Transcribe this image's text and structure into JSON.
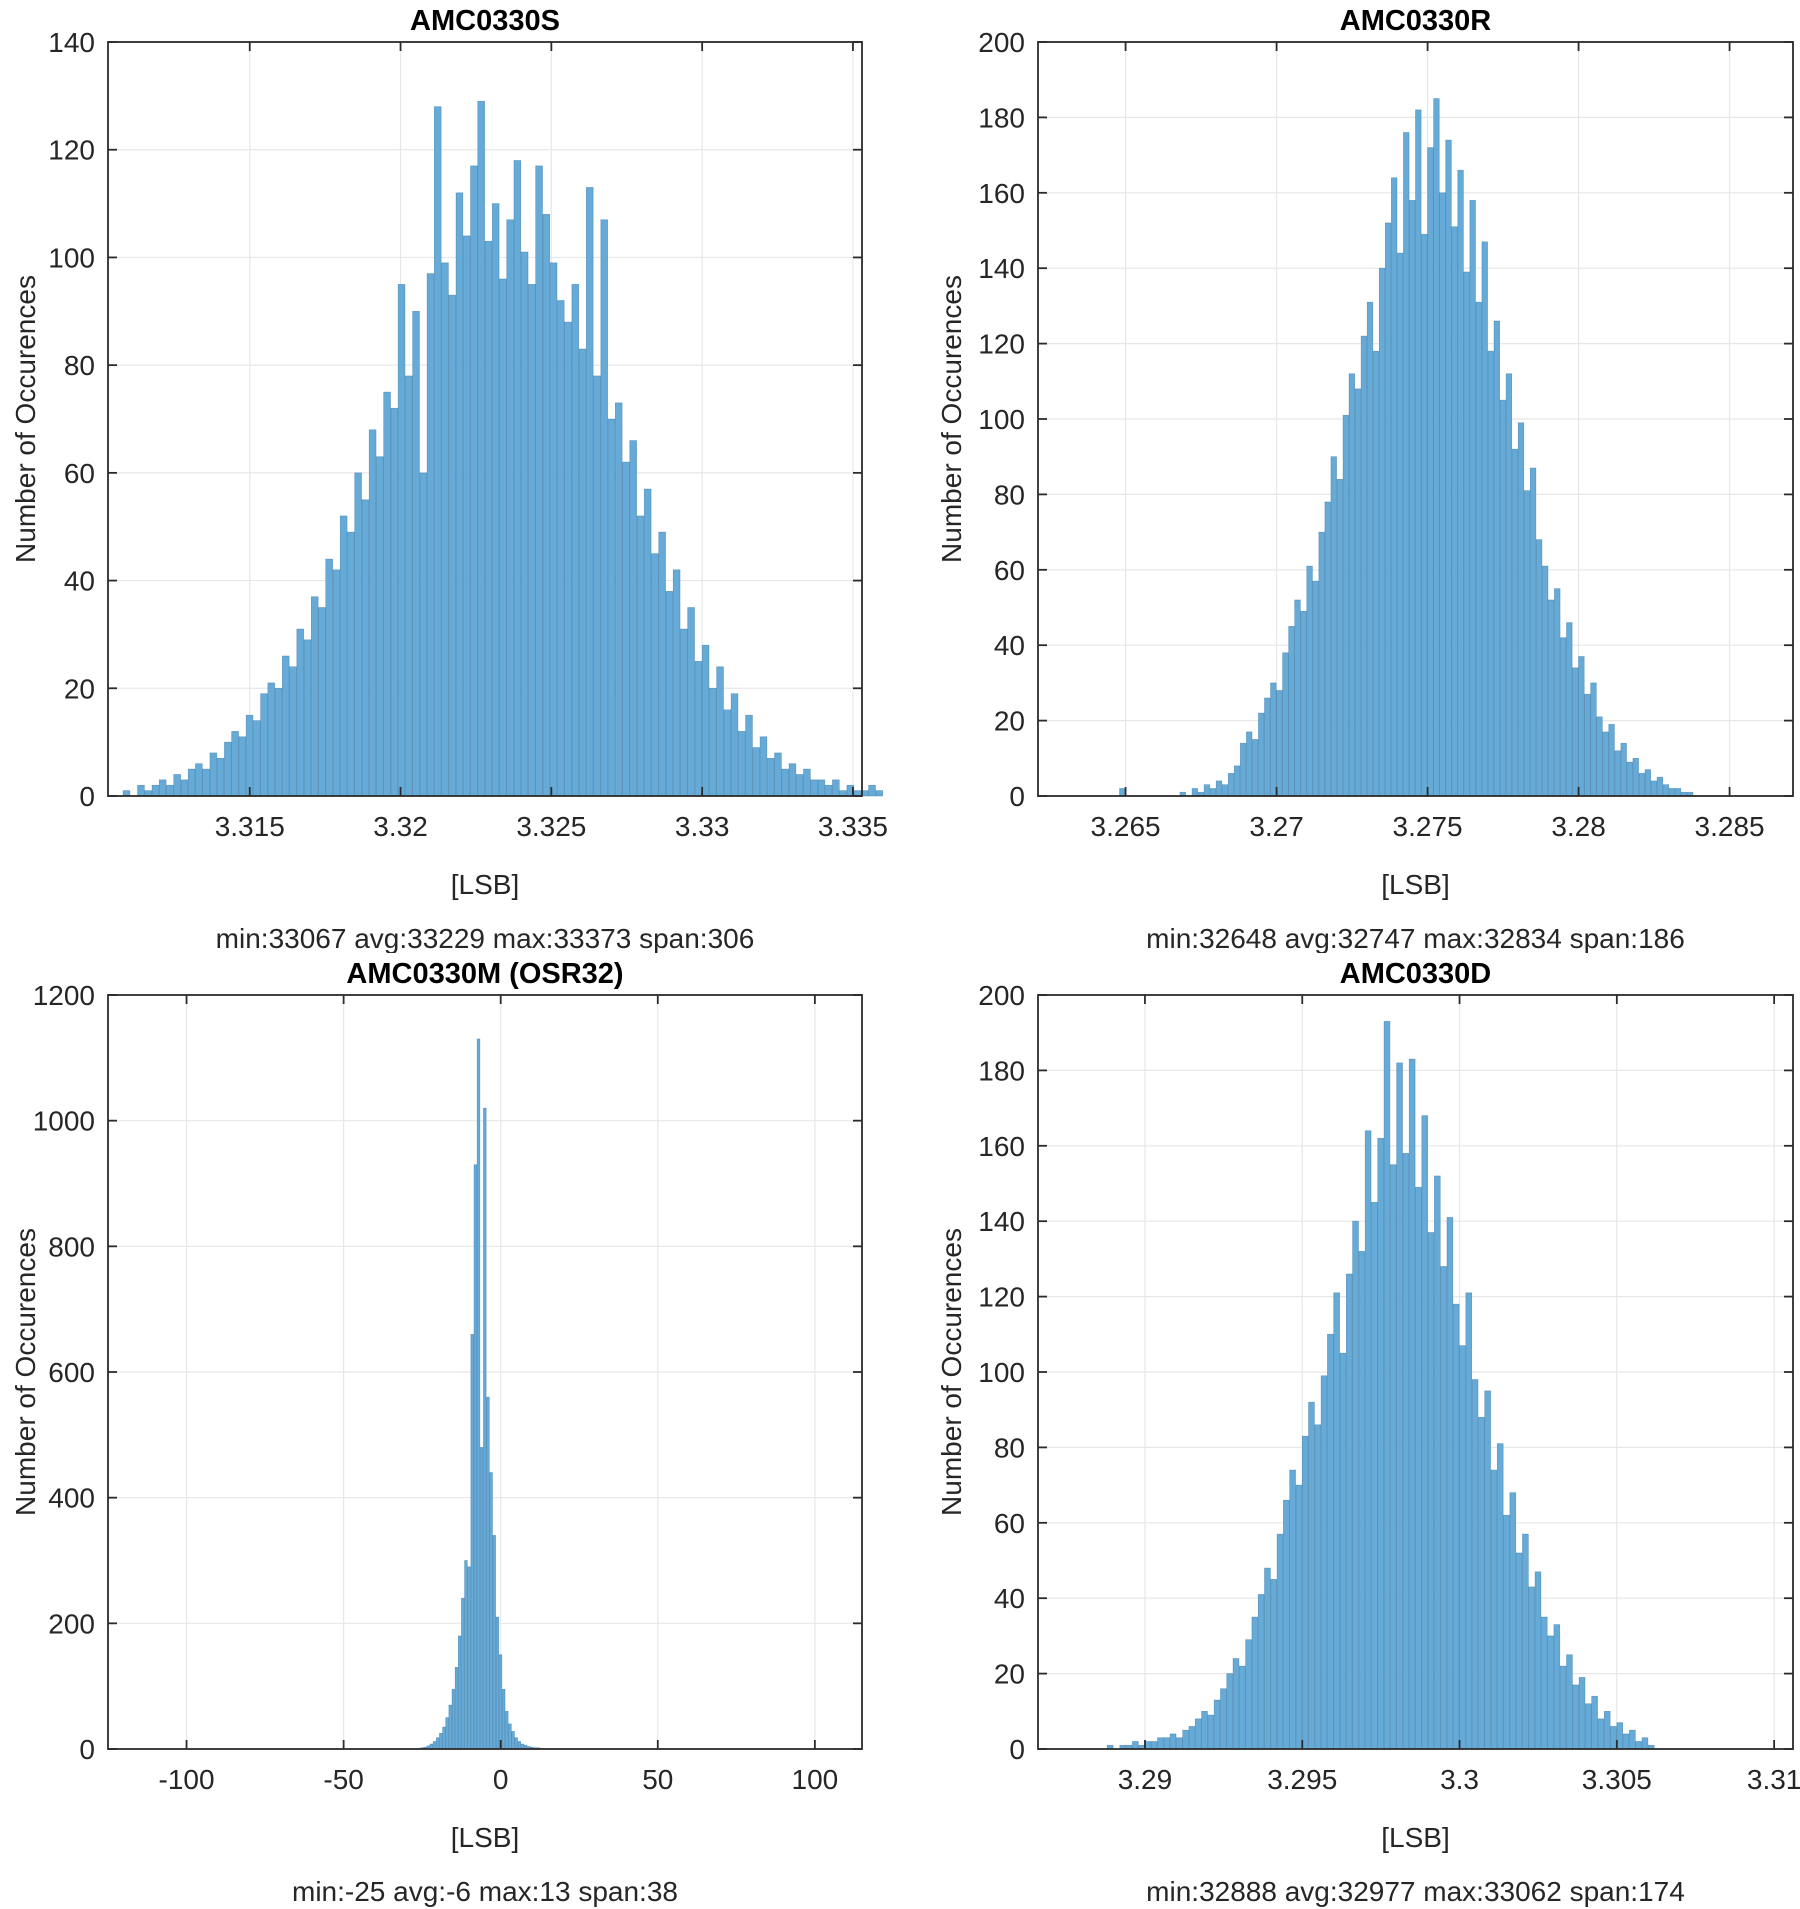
{
  "figure": {
    "background": "#FFFFFF",
    "text_color": "#262626",
    "grid_color": "#E7E7E7",
    "axis_color": "#2B2B2B",
    "bar_fill": "#66AAD7",
    "bar_edge": "rgba(43,106,152,0.55)"
  },
  "chart_data": [
    {
      "type": "bar",
      "title": "AMC0330S",
      "ylabel": "Number of Occurences",
      "xlabel": "[LSB]",
      "caption": "min:33067 avg:33229 max:33373 span:306",
      "grid": true,
      "legend": "none",
      "xlim": [
        3.3103,
        3.3353
      ],
      "ylim": [
        0,
        140
      ],
      "xticks": [
        3.315,
        3.32,
        3.325,
        3.33,
        3.335
      ],
      "yticks": [
        0,
        20,
        40,
        60,
        80,
        100,
        120,
        140
      ],
      "bins": {
        "x0": 3.3108,
        "dx": 0.00024
      },
      "counts": [
        1,
        0,
        2,
        1,
        2,
        3,
        2,
        4,
        3,
        5,
        6,
        5,
        8,
        7,
        10,
        12,
        11,
        15,
        14,
        19,
        21,
        20,
        26,
        24,
        31,
        29,
        37,
        35,
        44,
        42,
        52,
        49,
        60,
        55,
        68,
        63,
        75,
        72,
        95,
        78,
        90,
        60,
        97,
        128,
        99,
        93,
        112,
        104,
        117,
        129,
        103,
        110,
        96,
        107,
        118,
        101,
        95,
        117,
        108,
        99,
        92,
        88,
        95,
        83,
        113,
        78,
        107,
        70,
        73,
        62,
        66,
        52,
        57,
        45,
        49,
        38,
        42,
        31,
        35,
        25,
        28,
        20,
        24,
        16,
        19,
        12,
        15,
        9,
        11,
        7,
        8,
        5,
        6,
        4,
        5,
        3,
        3,
        2,
        3,
        1,
        2,
        1,
        1,
        2,
        1
      ]
    },
    {
      "type": "bar",
      "title": "AMC0330R",
      "ylabel": "Number of Occurences",
      "xlabel": "[LSB]",
      "caption": "min:32648 avg:32747 max:32834 span:186",
      "grid": true,
      "legend": "none",
      "xlim": [
        3.2621,
        3.2871
      ],
      "ylim": [
        0,
        200
      ],
      "xticks": [
        3.265,
        3.27,
        3.275,
        3.28,
        3.285
      ],
      "yticks": [
        0,
        20,
        40,
        60,
        80,
        100,
        120,
        140,
        160,
        180,
        200
      ],
      "bins": {
        "x0": 3.2648,
        "dx": 0.0002
      },
      "counts": [
        2,
        0,
        0,
        0,
        0,
        0,
        0,
        0,
        0,
        0,
        1,
        0,
        2,
        1,
        3,
        2,
        4,
        3,
        6,
        8,
        14,
        17,
        15,
        22,
        26,
        30,
        28,
        38,
        45,
        52,
        49,
        61,
        57,
        70,
        78,
        90,
        84,
        101,
        112,
        108,
        122,
        131,
        118,
        140,
        152,
        164,
        144,
        176,
        158,
        182,
        149,
        172,
        185,
        160,
        174,
        151,
        166,
        139,
        158,
        131,
        147,
        118,
        126,
        105,
        112,
        92,
        99,
        81,
        87,
        68,
        61,
        52,
        55,
        42,
        46,
        34,
        37,
        27,
        30,
        21,
        17,
        19,
        12,
        14,
        9,
        10,
        6,
        7,
        4,
        5,
        3,
        2,
        2,
        1,
        1
      ]
    },
    {
      "type": "bar",
      "title": "AMC0330M (OSR32)",
      "ylabel": "Number of Occurences",
      "xlabel": "[LSB]",
      "caption": "min:-25 avg:-6 max:13 span:38",
      "grid": true,
      "legend": "none",
      "xlim": [
        -125,
        115
      ],
      "ylim": [
        0,
        1200
      ],
      "xticks": [
        -100,
        -50,
        0,
        50,
        100
      ],
      "yticks": [
        0,
        200,
        400,
        600,
        800,
        1000,
        1200
      ],
      "bins": {
        "x0": -25.5,
        "dx": 1
      },
      "counts": [
        2,
        3,
        5,
        8,
        12,
        18,
        25,
        35,
        50,
        70,
        95,
        130,
        180,
        240,
        300,
        290,
        660,
        930,
        1130,
        480,
        1020,
        560,
        440,
        340,
        210,
        150,
        95,
        60,
        40,
        28,
        18,
        12,
        8,
        6,
        4,
        3,
        2,
        2,
        1
      ]
    },
    {
      "type": "bar",
      "title": "AMC0330D",
      "ylabel": "Number of Occurences",
      "xlabel": "[LSB]",
      "caption": "min:32888 avg:32977 max:33062 span:174",
      "grid": true,
      "legend": "none",
      "xlim": [
        3.2866,
        3.3106
      ],
      "ylim": [
        0,
        200
      ],
      "xticks": [
        3.29,
        3.295,
        3.3,
        3.305,
        3.31
      ],
      "yticks": [
        0,
        20,
        40,
        60,
        80,
        100,
        120,
        140,
        160,
        180,
        200
      ],
      "bins": {
        "x0": 3.2888,
        "dx": 0.0002
      },
      "counts": [
        1,
        0,
        1,
        1,
        2,
        1,
        2,
        2,
        3,
        3,
        4,
        3,
        5,
        6,
        8,
        10,
        9,
        13,
        16,
        20,
        24,
        22,
        29,
        35,
        41,
        48,
        45,
        57,
        66,
        74,
        70,
        83,
        92,
        86,
        99,
        110,
        121,
        105,
        126,
        140,
        132,
        164,
        145,
        162,
        193,
        155,
        182,
        158,
        183,
        149,
        168,
        137,
        152,
        128,
        141,
        118,
        107,
        121,
        98,
        88,
        95,
        74,
        81,
        62,
        68,
        52,
        57,
        43,
        47,
        35,
        30,
        33,
        22,
        25,
        17,
        19,
        12,
        14,
        8,
        10,
        6,
        7,
        4,
        5,
        2,
        3,
        1
      ]
    }
  ]
}
